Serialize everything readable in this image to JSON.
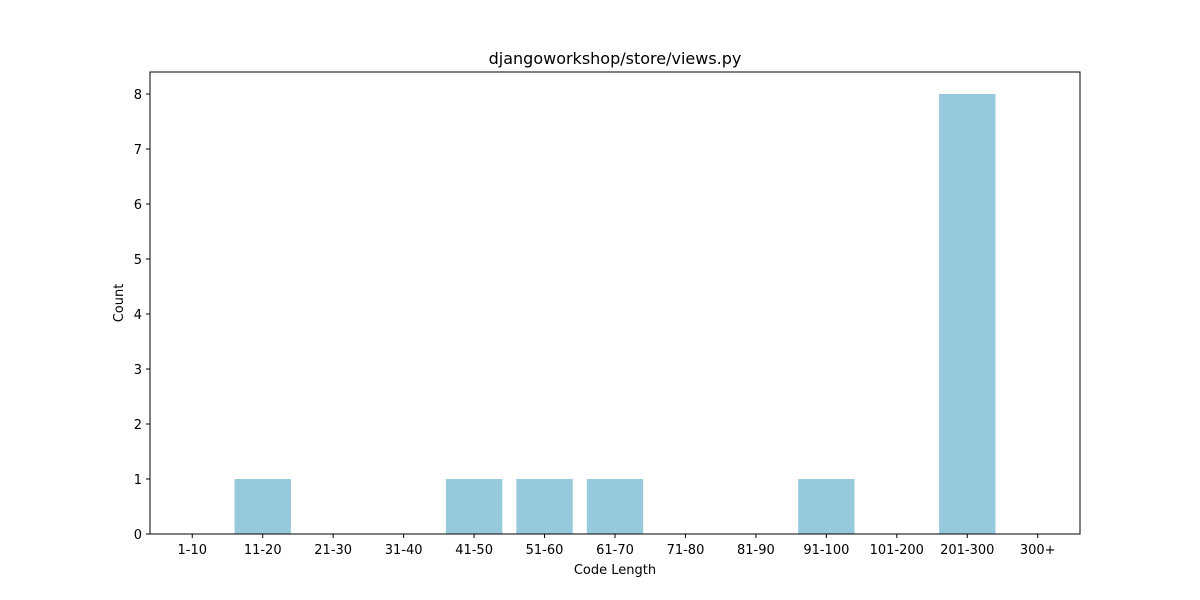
{
  "chart_data": {
    "type": "bar",
    "title": "djangoworkshop/store/views.py",
    "xlabel": "Code Length",
    "ylabel": "Count",
    "categories": [
      "1-10",
      "11-20",
      "21-30",
      "31-40",
      "41-50",
      "51-60",
      "61-70",
      "71-80",
      "81-90",
      "91-100",
      "101-200",
      "201-300",
      "300+"
    ],
    "values": [
      0,
      1,
      0,
      0,
      1,
      1,
      1,
      0,
      0,
      1,
      0,
      8,
      0
    ],
    "ylim": [
      0,
      8.4
    ],
    "yticks": [
      0,
      1,
      2,
      3,
      4,
      5,
      6,
      7,
      8
    ],
    "bar_color": "#96c9dc",
    "grid": false,
    "legend": false
  }
}
